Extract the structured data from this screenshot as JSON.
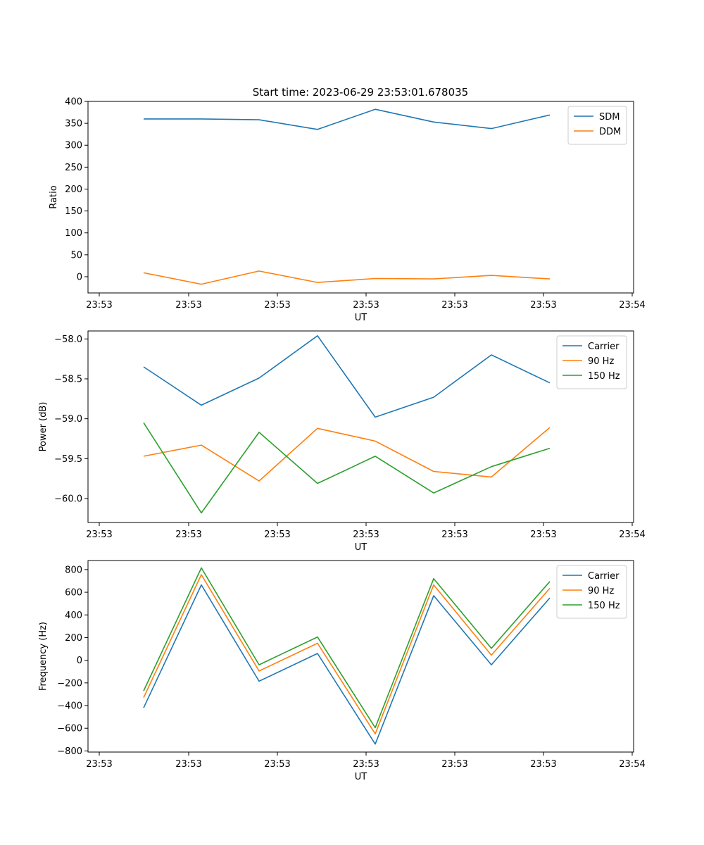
{
  "figure": {
    "title": "Start time: 2023-06-29 23:53:01.678035"
  },
  "chart_data": [
    {
      "type": "line",
      "title": "Start time: 2023-06-29 23:53:01.678035",
      "xlabel": "UT",
      "ylabel": "Ratio",
      "x_tick_labels": [
        "23:53",
        "23:53",
        "23:53",
        "23:53",
        "23:53",
        "23:53",
        "23:54"
      ],
      "yticks": [
        0,
        50,
        100,
        150,
        200,
        250,
        300,
        350,
        400
      ],
      "ylim": [
        -37,
        400
      ],
      "grid": false,
      "legend_position": "top-right",
      "series": [
        {
          "name": "SDM",
          "color": "#1f77b4",
          "values": [
            360,
            360,
            358,
            336,
            382,
            353,
            338,
            369
          ]
        },
        {
          "name": "DDM",
          "color": "#ff7f0e",
          "values": [
            9,
            -17,
            13,
            -13,
            -4,
            -5,
            3,
            -5
          ]
        }
      ]
    },
    {
      "type": "line",
      "title": "",
      "xlabel": "UT",
      "ylabel": "Power (dB)",
      "x_tick_labels": [
        "23:53",
        "23:53",
        "23:53",
        "23:53",
        "23:53",
        "23:53",
        "23:54"
      ],
      "yticks": [
        -60.0,
        -59.5,
        -59.0,
        -58.5,
        -58.0
      ],
      "ytick_labels": [
        "−60.0",
        "−59.5",
        "−59.0",
        "−58.5",
        "−58.0"
      ],
      "ylim": [
        -60.3,
        -57.9
      ],
      "grid": false,
      "legend_position": "top-right",
      "series": [
        {
          "name": "Carrier",
          "color": "#1f77b4",
          "values": [
            -58.35,
            -58.83,
            -58.49,
            -57.96,
            -58.98,
            -58.73,
            -58.2,
            -58.55
          ]
        },
        {
          "name": "90 Hz",
          "color": "#ff7f0e",
          "values": [
            -59.47,
            -59.33,
            -59.78,
            -59.12,
            -59.28,
            -59.66,
            -59.73,
            -59.11
          ]
        },
        {
          "name": "150 Hz",
          "color": "#2ca02c",
          "values": [
            -59.05,
            -60.18,
            -59.17,
            -59.81,
            -59.47,
            -59.93,
            -59.6,
            -59.37
          ]
        }
      ]
    },
    {
      "type": "line",
      "title": "",
      "xlabel": "UT",
      "ylabel": "Frequency (Hz)",
      "x_tick_labels": [
        "23:53",
        "23:53",
        "23:53",
        "23:53",
        "23:53",
        "23:53",
        "23:54"
      ],
      "yticks": [
        -800,
        -600,
        -400,
        -200,
        0,
        200,
        400,
        600,
        800
      ],
      "ytick_labels": [
        "−800",
        "−600",
        "−400",
        "−200",
        "0",
        "200",
        "400",
        "600",
        "800"
      ],
      "ylim": [
        -810,
        880
      ],
      "grid": false,
      "legend_position": "top-right",
      "series": [
        {
          "name": "Carrier",
          "color": "#1f77b4",
          "values": [
            -420,
            665,
            -185,
            60,
            -740,
            570,
            -40,
            550
          ]
        },
        {
          "name": "90 Hz",
          "color": "#ff7f0e",
          "values": [
            -330,
            755,
            -95,
            150,
            -650,
            665,
            45,
            635
          ]
        },
        {
          "name": "150 Hz",
          "color": "#2ca02c",
          "values": [
            -270,
            815,
            -40,
            205,
            -595,
            720,
            105,
            695
          ]
        }
      ]
    }
  ]
}
